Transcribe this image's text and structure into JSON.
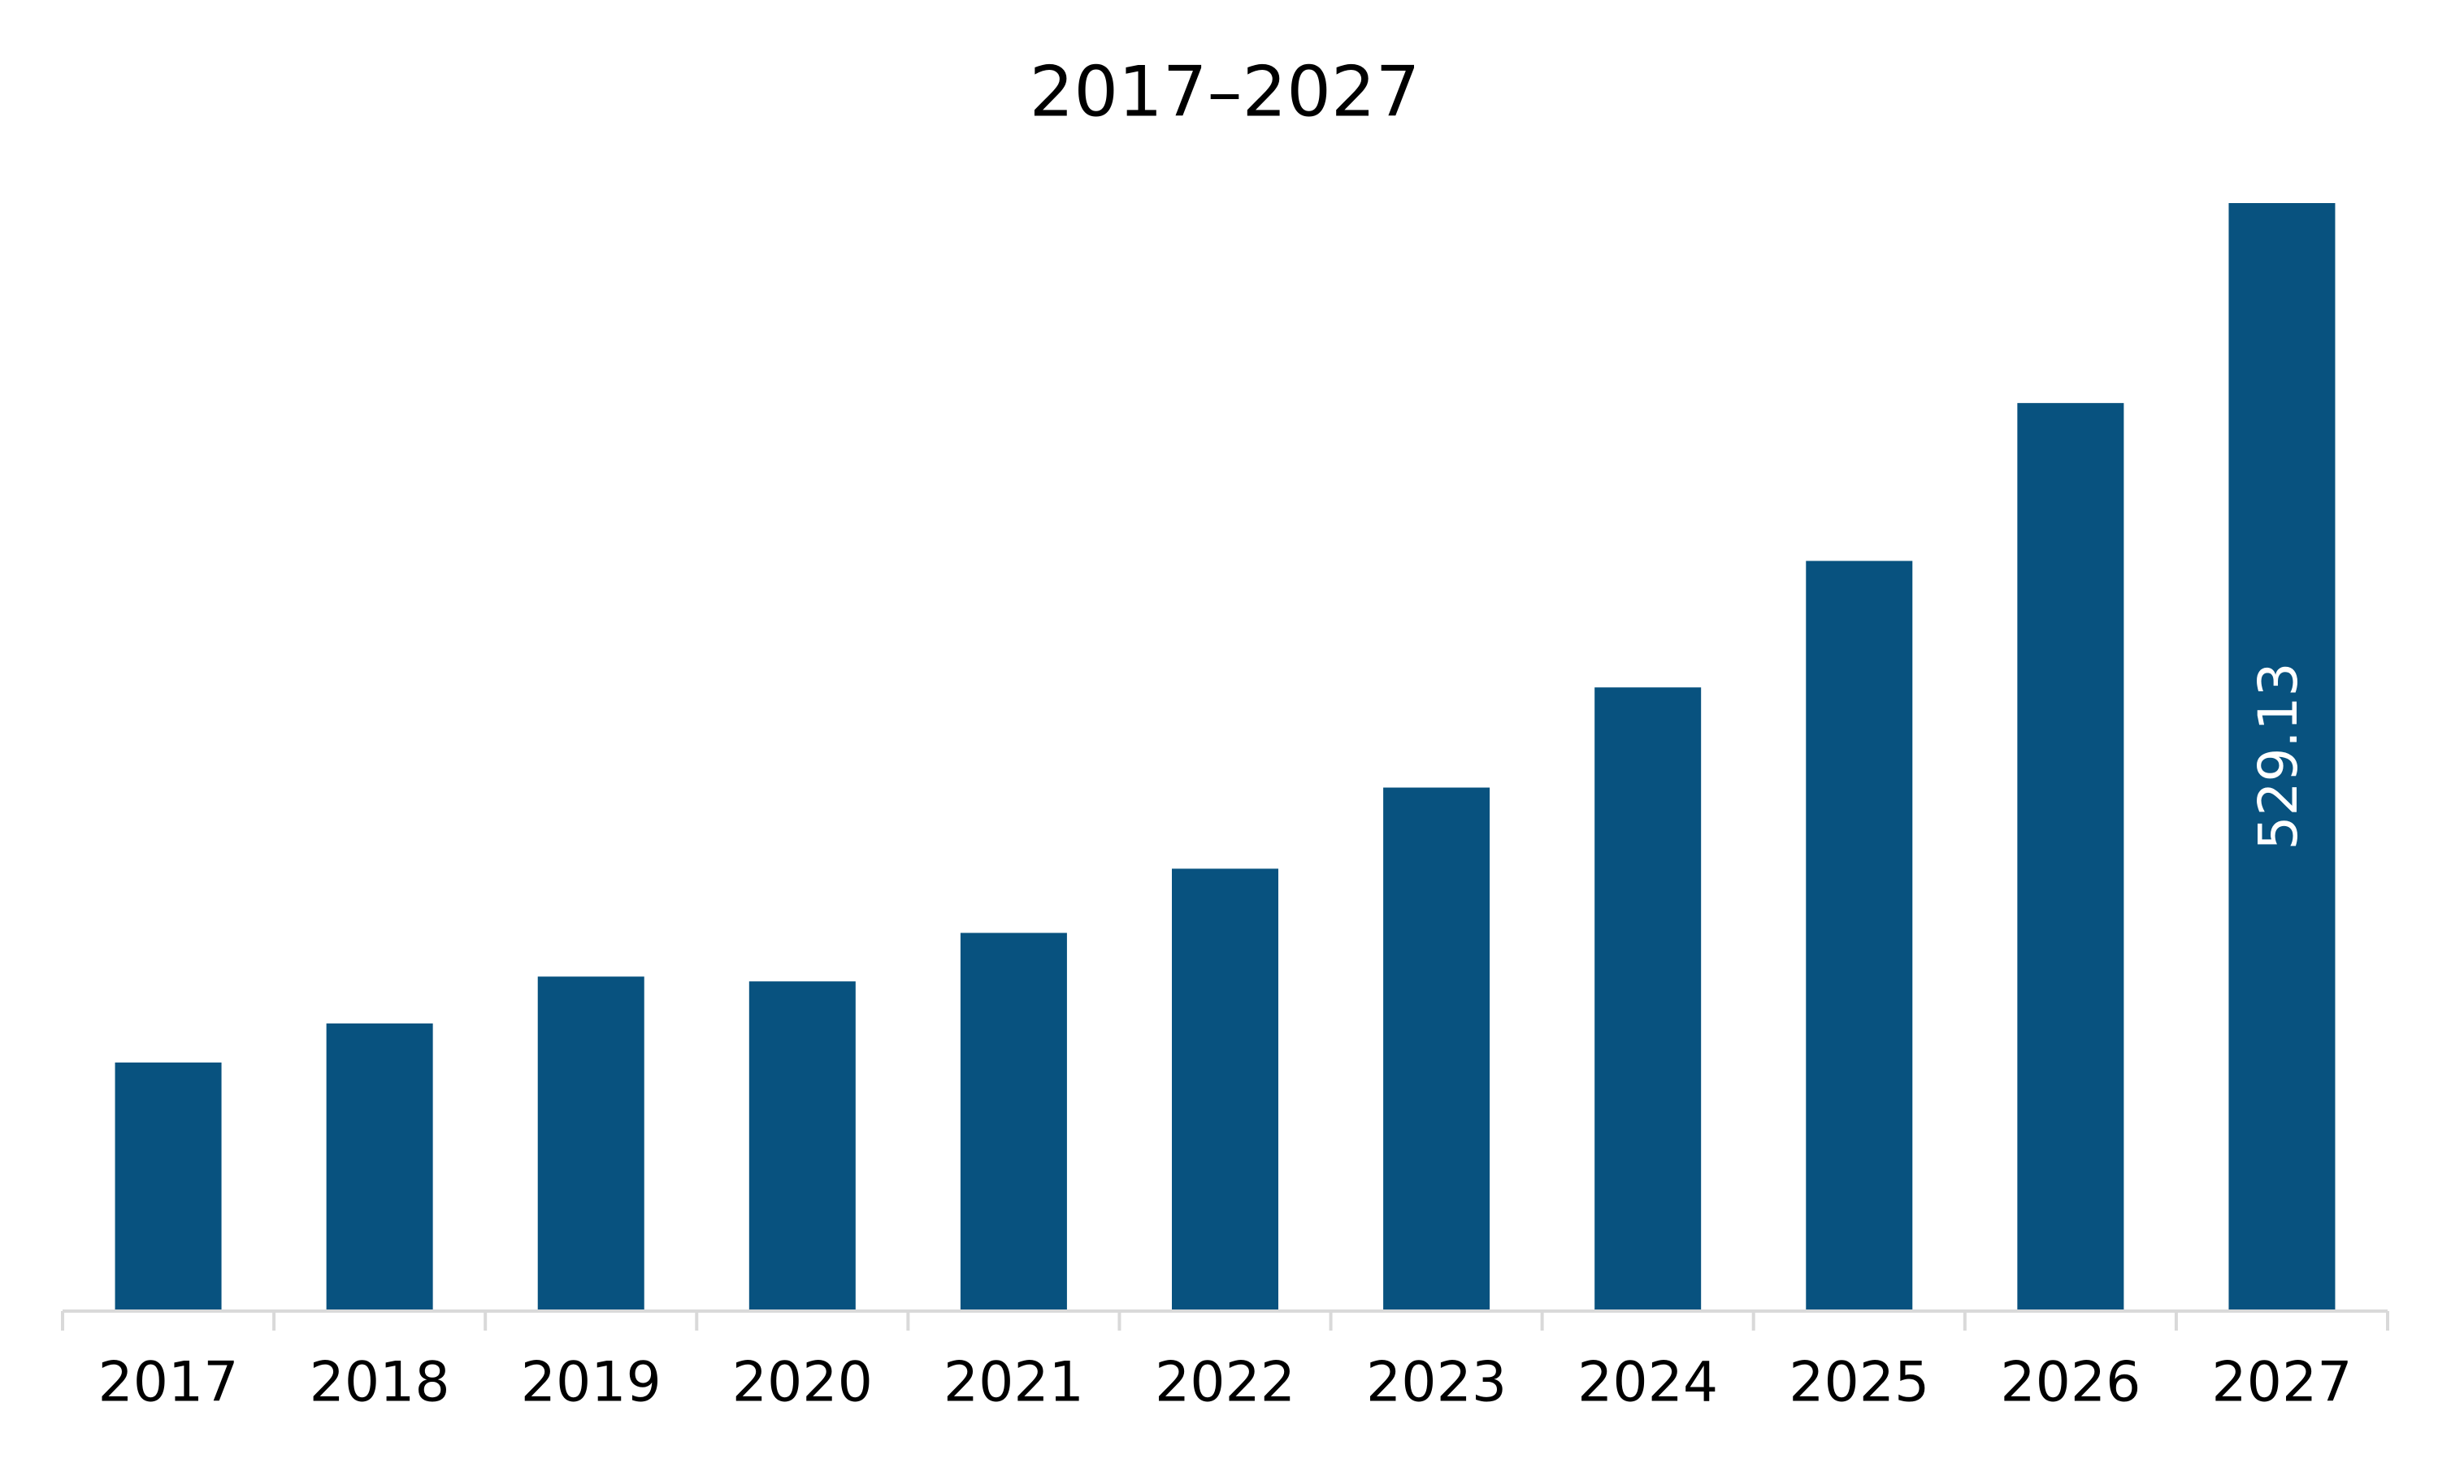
{
  "chart_data": {
    "type": "bar",
    "title": "2017–2027",
    "categories": [
      "2017",
      "2018",
      "2019",
      "2020",
      "2021",
      "2022",
      "2023",
      "2024",
      "2025",
      "2026",
      "2027"
    ],
    "values": [
      118.1,
      136.8,
      159.2,
      156.9,
      180.1,
      210.8,
      249.6,
      297.5,
      358.0,
      433.5,
      529.13
    ],
    "value_labels": [
      null,
      null,
      null,
      null,
      null,
      null,
      null,
      null,
      null,
      null,
      "529.13"
    ],
    "color": "#08527f"
  }
}
